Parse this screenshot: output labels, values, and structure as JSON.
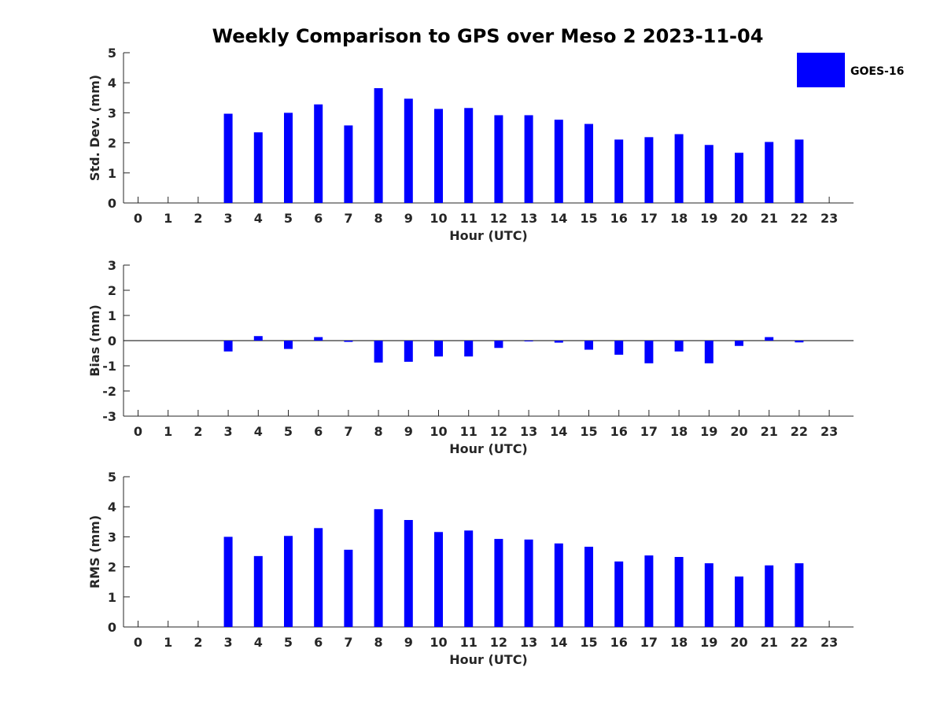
{
  "title": "Weekly Comparison to GPS over Meso 2 2023-11-04",
  "legend": {
    "label": "GOES-16",
    "color": "#0000ff",
    "placement": "top-right"
  },
  "chart_data": [
    {
      "type": "bar",
      "name": "std-dev",
      "categories": [
        "0",
        "1",
        "2",
        "3",
        "4",
        "5",
        "6",
        "7",
        "8",
        "9",
        "10",
        "11",
        "12",
        "13",
        "14",
        "15",
        "16",
        "17",
        "18",
        "19",
        "20",
        "21",
        "22",
        "23"
      ],
      "series": [
        {
          "name": "GOES-16",
          "values": [
            null,
            null,
            null,
            2.97,
            2.35,
            3.0,
            3.28,
            2.58,
            3.82,
            3.47,
            3.13,
            3.16,
            2.92,
            2.92,
            2.77,
            2.63,
            2.11,
            2.19,
            2.29,
            1.93,
            1.67,
            2.03,
            2.11,
            null
          ]
        }
      ],
      "xlabel": "Hour (UTC)",
      "ylabel": "Std. Dev. (mm)",
      "ylim": [
        0,
        5
      ],
      "yticks": [
        "0",
        "1",
        "2",
        "3",
        "4",
        "5"
      ],
      "grid": false
    },
    {
      "type": "bar",
      "name": "bias",
      "categories": [
        "0",
        "1",
        "2",
        "3",
        "4",
        "5",
        "6",
        "7",
        "8",
        "9",
        "10",
        "11",
        "12",
        "13",
        "14",
        "15",
        "16",
        "17",
        "18",
        "19",
        "20",
        "21",
        "22",
        "23"
      ],
      "series": [
        {
          "name": "GOES-16",
          "values": [
            null,
            null,
            null,
            -0.43,
            0.18,
            -0.33,
            0.14,
            -0.05,
            -0.87,
            -0.84,
            -0.63,
            -0.63,
            -0.29,
            -0.02,
            -0.08,
            -0.36,
            -0.56,
            -0.9,
            -0.43,
            -0.9,
            -0.21,
            0.14,
            -0.07,
            null
          ]
        }
      ],
      "xlabel": "Hour (UTC)",
      "ylabel": "Bias (mm)",
      "ylim": [
        -3,
        3
      ],
      "yticks": [
        "3",
        "2",
        "1",
        "0",
        "-1",
        "-2",
        "-3"
      ],
      "zero_line": true,
      "grid": false
    },
    {
      "type": "bar",
      "name": "rms",
      "categories": [
        "0",
        "1",
        "2",
        "3",
        "4",
        "5",
        "6",
        "7",
        "8",
        "9",
        "10",
        "11",
        "12",
        "13",
        "14",
        "15",
        "16",
        "17",
        "18",
        "19",
        "20",
        "21",
        "22",
        "23"
      ],
      "series": [
        {
          "name": "GOES-16",
          "values": [
            null,
            null,
            null,
            3.0,
            2.36,
            3.03,
            3.29,
            2.57,
            3.92,
            3.56,
            3.16,
            3.21,
            2.93,
            2.91,
            2.78,
            2.67,
            2.18,
            2.38,
            2.33,
            2.12,
            1.68,
            2.05,
            2.12,
            null
          ]
        }
      ],
      "xlabel": "Hour (UTC)",
      "ylabel": "RMS (mm)",
      "ylim": [
        0,
        5
      ],
      "yticks": [
        "0",
        "1",
        "2",
        "3",
        "4",
        "5"
      ],
      "grid": false
    }
  ]
}
